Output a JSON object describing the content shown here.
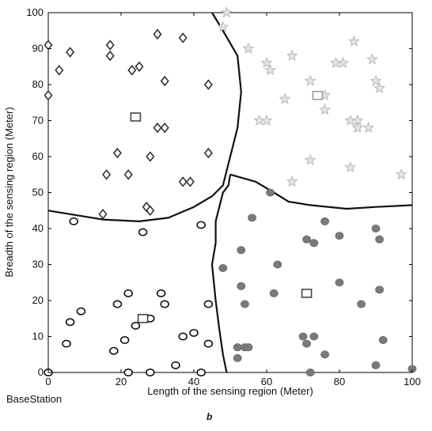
{
  "chart_data": {
    "type": "scatter",
    "xlabel": "Length of the sensing region (Meter)",
    "ylabel": "Breadth of the sensing region (Meter)",
    "xlim": [
      0,
      100
    ],
    "ylim": [
      0,
      100
    ],
    "xticks": [
      "0",
      "20",
      "40",
      "60",
      "80",
      "100"
    ],
    "yticks": [
      "0",
      "10",
      "20",
      "30",
      "40",
      "50",
      "60",
      "70",
      "80",
      "90",
      "100"
    ],
    "grid": false,
    "base_station_label": "BaseStation",
    "panel_label": "b",
    "colors": {
      "diamond": "#333333",
      "star": "#b8b8b8",
      "circle": "#111111",
      "filled": "#7a7a7a",
      "boundary": "#111111",
      "head_edge": "#444444"
    },
    "boundaries": [
      [
        [
          45,
          100
        ],
        [
          48,
          95
        ],
        [
          52,
          88
        ],
        [
          53,
          78
        ],
        [
          52,
          68
        ],
        [
          50,
          60
        ],
        [
          49,
          56
        ],
        [
          48,
          52
        ],
        [
          45,
          49
        ],
        [
          40,
          46
        ],
        [
          33,
          43
        ],
        [
          25,
          42
        ],
        [
          15,
          42.5
        ],
        [
          6,
          44
        ],
        [
          0,
          45
        ]
      ],
      [
        [
          50,
          55
        ],
        [
          57,
          53
        ],
        [
          62,
          50
        ],
        [
          66,
          47.5
        ],
        [
          72,
          46.5
        ],
        [
          82,
          45.5
        ],
        [
          90,
          46
        ],
        [
          100,
          46.5
        ]
      ],
      [
        [
          50,
          55
        ],
        [
          49.5,
          52
        ],
        [
          48,
          50
        ],
        [
          47,
          46
        ],
        [
          46,
          42
        ],
        [
          46,
          36
        ],
        [
          45,
          30
        ],
        [
          46,
          20
        ],
        [
          47,
          12
        ],
        [
          48,
          5
        ],
        [
          49,
          0
        ]
      ]
    ],
    "series": [
      {
        "marker": "diamond",
        "cluster_head": [
          24,
          71
        ],
        "points": [
          [
            0,
            91
          ],
          [
            3,
            84
          ],
          [
            6,
            89
          ],
          [
            0,
            77
          ],
          [
            17,
            91
          ],
          [
            17,
            88
          ],
          [
            30,
            94
          ],
          [
            37,
            93
          ],
          [
            23,
            84
          ],
          [
            25,
            85
          ],
          [
            32,
            81
          ],
          [
            44,
            80
          ],
          [
            30,
            68
          ],
          [
            32,
            68
          ],
          [
            19,
            61
          ],
          [
            28,
            60
          ],
          [
            16,
            55
          ],
          [
            22,
            55
          ],
          [
            44,
            61
          ],
          [
            37,
            53
          ],
          [
            39,
            53
          ],
          [
            27,
            46
          ],
          [
            28,
            45
          ],
          [
            15,
            44
          ]
        ]
      },
      {
        "marker": "star",
        "cluster_head": [
          74,
          77
        ],
        "points": [
          [
            49,
            100
          ],
          [
            48,
            96
          ],
          [
            55,
            90
          ],
          [
            60,
            86
          ],
          [
            61,
            84
          ],
          [
            67,
            88
          ],
          [
            65,
            76
          ],
          [
            58,
            70
          ],
          [
            60,
            70
          ],
          [
            72,
            81
          ],
          [
            76,
            77
          ],
          [
            76,
            73
          ],
          [
            79,
            86
          ],
          [
            81,
            86
          ],
          [
            84,
            92
          ],
          [
            89,
            87
          ],
          [
            90,
            81
          ],
          [
            91,
            79
          ],
          [
            83,
            70
          ],
          [
            85,
            70
          ],
          [
            85,
            68
          ],
          [
            88,
            68
          ],
          [
            72,
            59
          ],
          [
            83,
            57
          ],
          [
            67,
            53
          ],
          [
            97,
            55
          ]
        ]
      },
      {
        "marker": "circle",
        "cluster_head": [
          26,
          15
        ],
        "points": [
          [
            7,
            42
          ],
          [
            26,
            39
          ],
          [
            42,
            41
          ],
          [
            6,
            14
          ],
          [
            9,
            17
          ],
          [
            5,
            8
          ],
          [
            19,
            19
          ],
          [
            22,
            22
          ],
          [
            24,
            13
          ],
          [
            28,
            15
          ],
          [
            31,
            22
          ],
          [
            32,
            19
          ],
          [
            44,
            19
          ],
          [
            37,
            10
          ],
          [
            40,
            11
          ],
          [
            44,
            8
          ],
          [
            21,
            9
          ],
          [
            18,
            6
          ],
          [
            22,
            0
          ],
          [
            28,
            0
          ],
          [
            35,
            2
          ],
          [
            42,
            0
          ],
          [
            0,
            0
          ]
        ]
      },
      {
        "marker": "filled",
        "cluster_head": [
          71,
          22
        ],
        "points": [
          [
            61,
            50
          ],
          [
            56,
            43
          ],
          [
            76,
            42
          ],
          [
            53,
            34
          ],
          [
            63,
            30
          ],
          [
            48,
            29
          ],
          [
            71,
            37
          ],
          [
            73,
            36
          ],
          [
            80,
            38
          ],
          [
            90,
            40
          ],
          [
            91,
            37
          ],
          [
            53,
            24
          ],
          [
            54,
            19
          ],
          [
            62,
            22
          ],
          [
            80,
            25
          ],
          [
            86,
            19
          ],
          [
            91,
            23
          ],
          [
            52,
            7
          ],
          [
            54,
            7
          ],
          [
            55,
            7
          ],
          [
            52,
            4
          ],
          [
            70,
            10
          ],
          [
            71,
            8
          ],
          [
            73,
            10
          ],
          [
            76,
            5
          ],
          [
            92,
            9
          ],
          [
            90,
            2
          ],
          [
            72,
            0
          ],
          [
            100,
            1
          ]
        ]
      }
    ]
  }
}
